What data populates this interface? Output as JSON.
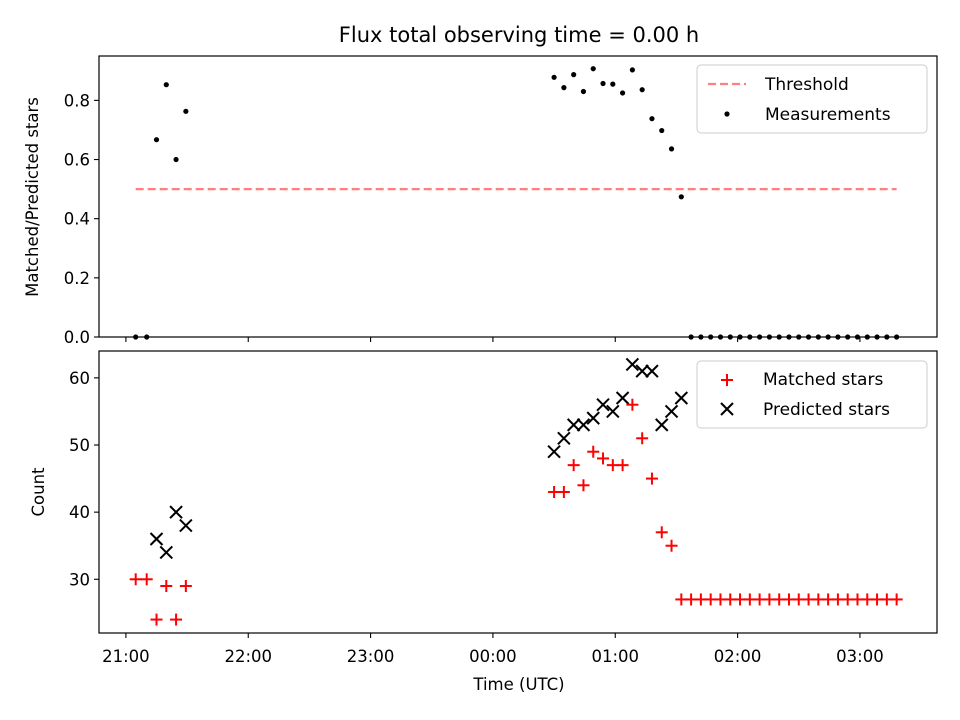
{
  "chart_data": [
    {
      "type": "scatter",
      "title": "Flux total observing time = 0.00 h",
      "ylabel": "Matched/Predicted stars",
      "xlabel": "",
      "x_unit": "hours since 21:00 UTC",
      "xlim": [
        -0.22,
        6.63
      ],
      "ylim": [
        0,
        0.95
      ],
      "yticks": [
        0.0,
        0.2,
        0.4,
        0.6,
        0.8
      ],
      "ytick_labels": [
        "0.0",
        "0.2",
        "0.4",
        "0.6",
        "0.8"
      ],
      "legend_position": "top-right",
      "threshold": {
        "name": "Threshold",
        "value": 0.5,
        "x_range": [
          0.08,
          6.3
        ],
        "color": "#ff7f7f",
        "style": "dashed"
      },
      "series": [
        {
          "name": "Measurements",
          "color": "#000000",
          "marker": "dot",
          "x": [
            0.08,
            0.17,
            0.25,
            0.33,
            0.41,
            0.49,
            3.5,
            3.58,
            3.66,
            3.74,
            3.82,
            3.9,
            3.98,
            4.06,
            4.14,
            4.22,
            4.3,
            4.38,
            4.46,
            4.54,
            4.62,
            4.7,
            4.78,
            4.86,
            4.94,
            5.02,
            5.1,
            5.18,
            5.26,
            5.34,
            5.42,
            5.5,
            5.58,
            5.66,
            5.74,
            5.82,
            5.9,
            5.98,
            6.06,
            6.14,
            6.22,
            6.3
          ],
          "y": [
            0.0,
            0.0,
            0.667,
            0.853,
            0.6,
            0.763,
            0.878,
            0.843,
            0.887,
            0.83,
            0.907,
            0.857,
            0.855,
            0.825,
            0.903,
            0.836,
            0.738,
            0.698,
            0.636,
            0.474,
            0.0,
            0.0,
            0.0,
            0.0,
            0.0,
            0.0,
            0.0,
            0.0,
            0.0,
            0.0,
            0.0,
            0.0,
            0.0,
            0.0,
            0.0,
            0.0,
            0.0,
            0.0,
            0.0,
            0.0,
            0.0,
            0.0
          ]
        }
      ]
    },
    {
      "type": "scatter",
      "title": "",
      "ylabel": "Count",
      "xlabel": "Time (UTC)",
      "x_unit": "hours since 21:00 UTC",
      "xlim": [
        -0.22,
        6.63
      ],
      "ylim": [
        22,
        64
      ],
      "yticks": [
        30,
        40,
        50,
        60
      ],
      "ytick_labels": [
        "30",
        "40",
        "50",
        "60"
      ],
      "xticks": [
        0,
        1,
        2,
        3,
        4,
        5,
        6
      ],
      "xtick_labels": [
        "21:00",
        "22:00",
        "23:00",
        "00:00",
        "01:00",
        "02:00",
        "03:00"
      ],
      "legend_position": "top-right",
      "series": [
        {
          "name": "Matched stars",
          "color": "#ff0000",
          "marker": "plus",
          "x": [
            0.08,
            0.17,
            0.25,
            0.33,
            0.41,
            0.49,
            3.5,
            3.58,
            3.66,
            3.74,
            3.82,
            3.9,
            3.98,
            4.06,
            4.14,
            4.22,
            4.3,
            4.38,
            4.46,
            4.54,
            4.62,
            4.7,
            4.78,
            4.86,
            4.94,
            5.02,
            5.1,
            5.18,
            5.26,
            5.34,
            5.42,
            5.5,
            5.58,
            5.66,
            5.74,
            5.82,
            5.9,
            5.98,
            6.06,
            6.14,
            6.22,
            6.3
          ],
          "y": [
            30,
            30,
            24,
            29,
            24,
            29,
            43,
            43,
            47,
            44,
            49,
            48,
            47,
            47,
            56,
            51,
            45,
            37,
            35,
            27,
            27,
            27,
            27,
            27,
            27,
            27,
            27,
            27,
            27,
            27,
            27,
            27,
            27,
            27,
            27,
            27,
            27,
            27,
            27,
            27,
            27,
            27
          ]
        },
        {
          "name": "Predicted stars",
          "color": "#000000",
          "marker": "x",
          "x": [
            0.25,
            0.33,
            0.41,
            0.49,
            3.5,
            3.58,
            3.66,
            3.74,
            3.82,
            3.9,
            3.98,
            4.06,
            4.14,
            4.22,
            4.3,
            4.38,
            4.46,
            4.54
          ],
          "y": [
            36,
            34,
            40,
            38,
            49,
            51,
            53,
            53,
            54,
            56,
            55,
            57,
            62,
            61,
            61,
            53,
            55,
            57
          ]
        }
      ]
    }
  ]
}
